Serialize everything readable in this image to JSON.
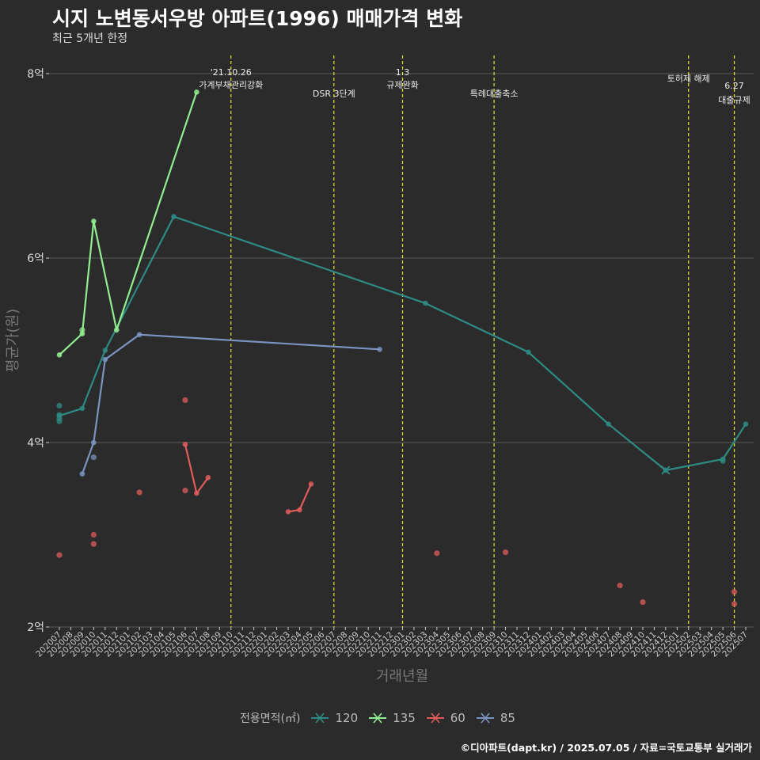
{
  "header": {
    "title": "시지 노변동서우방 아파트(1996) 매매가격 변화",
    "subtitle": "최근 5개년 한정"
  },
  "caption": "©디아파트(dapt.kr) / 2025.07.05 / 자료=국토교통부 실거래가",
  "chart_data": {
    "type": "line",
    "title": "시지 노변동서우방 아파트(1996) 매매가격 변화",
    "subtitle": "최근 5개년 한정",
    "xlabel": "거래년월",
    "ylabel": "평균가(원)",
    "ylim": [
      2,
      8.3
    ],
    "y_ticks": [
      2,
      4,
      6,
      8
    ],
    "y_tick_labels": [
      "2억",
      "4억",
      "6억",
      "8억"
    ],
    "categories": [
      "202007",
      "202008",
      "202009",
      "202010",
      "202011",
      "202012",
      "202101",
      "202102",
      "202103",
      "202104",
      "202105",
      "202106",
      "202107",
      "202108",
      "202109",
      "202110",
      "202111",
      "202112",
      "202201",
      "202202",
      "202203",
      "202204",
      "202205",
      "202206",
      "202207",
      "202208",
      "202209",
      "202210",
      "202211",
      "202212",
      "202301",
      "202302",
      "202303",
      "202304",
      "202305",
      "202306",
      "202307",
      "202308",
      "202309",
      "202310",
      "202311",
      "202312",
      "202401",
      "202402",
      "202403",
      "202404",
      "202405",
      "202406",
      "202407",
      "202408",
      "202409",
      "202410",
      "202411",
      "202412",
      "202501",
      "202502",
      "202503",
      "202504",
      "202505",
      "202506",
      "202507"
    ],
    "legend_title": "전용면적(㎡)",
    "series": [
      {
        "name": "120",
        "color": "#2e8b84",
        "line": [
          [
            0,
            4.29
          ],
          [
            2,
            4.37
          ],
          [
            4,
            5.0
          ],
          [
            10,
            6.45
          ],
          [
            32,
            5.51
          ],
          [
            41,
            4.98
          ],
          [
            48,
            4.2
          ],
          [
            53,
            3.7
          ],
          [
            58,
            3.82
          ],
          [
            60,
            4.2
          ]
        ],
        "points": [
          [
            0,
            4.4
          ],
          [
            0,
            4.3
          ],
          [
            0,
            4.26
          ],
          [
            0,
            4.23
          ],
          [
            58,
            3.8
          ]
        ],
        "cross": [
          53,
          3.7
        ]
      },
      {
        "name": "135",
        "color": "#90ee90",
        "line": [
          [
            0,
            4.95
          ],
          [
            2,
            5.18
          ],
          [
            3,
            6.4
          ],
          [
            5,
            5.22
          ],
          [
            12,
            7.8
          ]
        ],
        "points": [
          [
            2,
            5.22
          ]
        ],
        "cross": null
      },
      {
        "name": "60",
        "color": "#e05c5c",
        "lines": [
          [
            [
              11,
              3.98
            ],
            [
              12,
              3.45
            ],
            [
              13,
              3.62
            ]
          ],
          [
            [
              20,
              3.25
            ],
            [
              21,
              3.27
            ],
            [
              22,
              3.55
            ]
          ]
        ],
        "points": [
          [
            0,
            2.78
          ],
          [
            3,
            3.0
          ],
          [
            3,
            2.9
          ],
          [
            7,
            3.46
          ],
          [
            11,
            4.46
          ],
          [
            11,
            3.48
          ],
          [
            33,
            2.8
          ],
          [
            39,
            2.81
          ],
          [
            49,
            2.45
          ],
          [
            51,
            2.27
          ],
          [
            59,
            2.38
          ],
          [
            59,
            2.25
          ]
        ],
        "cross": null
      },
      {
        "name": "85",
        "color": "#7b93c0",
        "line": [
          [
            2,
            3.66
          ],
          [
            3,
            4.0
          ],
          [
            4,
            4.9
          ],
          [
            7,
            5.17
          ],
          [
            28,
            5.01
          ]
        ],
        "points": [
          [
            3,
            3.84
          ]
        ],
        "cross": null
      }
    ],
    "events": [
      {
        "x": 15,
        "lines": [
          "'21.10.26",
          "가계부채관리강화"
        ]
      },
      {
        "x": 24,
        "lines": [
          "DSR 3단계"
        ]
      },
      {
        "x": 30,
        "lines": [
          "1.3",
          "규제완화"
        ]
      },
      {
        "x": 38,
        "lines": [
          "특례대출축소"
        ]
      },
      {
        "x": 55,
        "lines": [
          "토허제 해제"
        ]
      },
      {
        "x": 59,
        "lines": [
          "6.27",
          "대출규제"
        ]
      }
    ]
  }
}
